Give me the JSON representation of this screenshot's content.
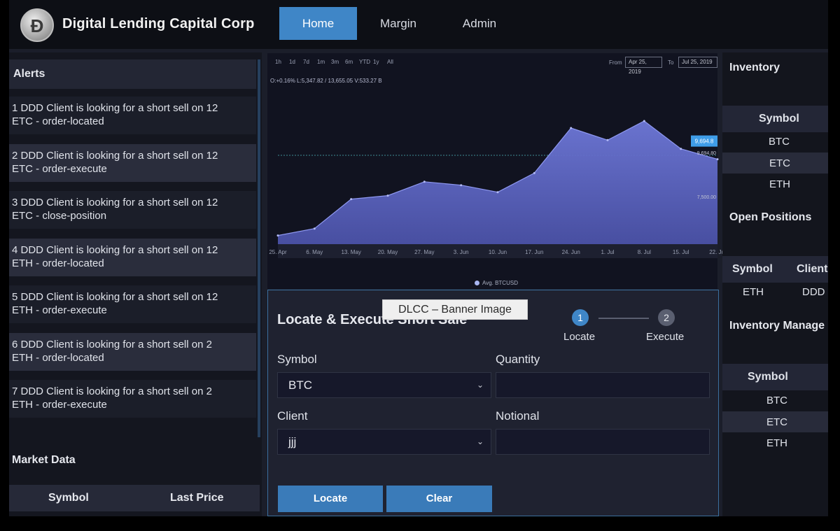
{
  "header": {
    "logo_glyph": "Đ",
    "brand": "Digital Lending Capital Corp",
    "nav": [
      "Home",
      "Margin",
      "Admin"
    ],
    "active_nav": "Home"
  },
  "alerts": {
    "title": "Alerts",
    "items": [
      {
        "line1": "1 DDD Client is looking for a short sell on 12",
        "line2": "ETC - order-located"
      },
      {
        "line1": "2 DDD Client is looking for a short sell on 12",
        "line2": "ETC - order-execute"
      },
      {
        "line1": "3 DDD Client is looking for a short sell on 12",
        "line2": "ETC - close-position"
      },
      {
        "line1": "4 DDD Client is looking for a short sell on 12",
        "line2": "ETH - order-located"
      },
      {
        "line1": "5 DDD Client is looking for a short sell on 12",
        "line2": "ETH - order-execute"
      },
      {
        "line1": "6 DDD Client is looking for a short sell on 2",
        "line2": "ETH - order-located"
      },
      {
        "line1": "7 DDD Client is looking for a short sell on 2",
        "line2": "ETH - order-execute"
      }
    ]
  },
  "market_data": {
    "title": "Market Data",
    "columns": [
      "Symbol",
      "Last Price"
    ]
  },
  "chart": {
    "ranges": [
      "1h",
      "1d",
      "7d",
      "1m",
      "3m",
      "6m",
      "YTD",
      "1y",
      "All"
    ],
    "from_label": "From",
    "from_date": "Apr 25, 2019",
    "to_label": "To",
    "to_date": "Jul 25, 2019",
    "ohlc": "O:+0.16% L:5,347.82 / 13,655.05 V:533.27 B",
    "x_ticks": [
      "25. Apr",
      "6. May",
      "13. May",
      "20. May",
      "27. May",
      "3. Jun",
      "10. Jun",
      "17. Jun",
      "24. Jun",
      "1. Jul",
      "8. Jul",
      "15. Jul",
      "22. Jul"
    ],
    "price_tag": "9,694.8",
    "right_label_1": "9,694.80",
    "right_label_2": "7,500.00",
    "legend": "Avg. BTCUSD",
    "series_color": "#6e78d8"
  },
  "chart_data": {
    "type": "area",
    "x": [
      "25. Apr",
      "6. May",
      "13. May",
      "20. May",
      "27. May",
      "3. Jun",
      "10. Jun",
      "17. Jun",
      "24. Jun",
      "1. Jul",
      "8. Jul",
      "15. Jul",
      "22. Jul"
    ],
    "series": [
      {
        "name": "Avg. BTCUSD",
        "values": [
          5300,
          5700,
          7400,
          7600,
          8400,
          8200,
          7800,
          8900,
          11500,
          10800,
          11900,
          10300,
          9700
        ]
      }
    ],
    "ylim": [
      4800,
      14000
    ],
    "legend": "bottom-center"
  },
  "banner": "DLCC – Banner Image",
  "form": {
    "title": "Locate & Execute Short Sale",
    "steps": [
      {
        "num": "1",
        "label": "Locate",
        "active": true
      },
      {
        "num": "2",
        "label": "Execute",
        "active": false
      }
    ],
    "symbol_label": "Symbol",
    "symbol_value": "BTC",
    "quantity_label": "Quantity",
    "quantity_value": "",
    "client_label": "Client",
    "client_value": "jjj",
    "notional_label": "Notional",
    "notional_value": "",
    "locate_button": "Locate",
    "clear_button": "Clear",
    "accent_color": "#3a7bb9"
  },
  "inventory": {
    "title": "Inventory",
    "column": "Symbol",
    "rows": [
      "BTC",
      "ETC",
      "ETH"
    ]
  },
  "open_positions": {
    "title": "Open Positions",
    "columns": [
      "Symbol",
      "Client"
    ],
    "rows": [
      {
        "symbol": "ETH",
        "client": "DDD"
      }
    ]
  },
  "inventory_management": {
    "title": "Inventory Manage",
    "column": "Symbol",
    "rows": [
      "BTC",
      "ETC",
      "ETH"
    ]
  }
}
